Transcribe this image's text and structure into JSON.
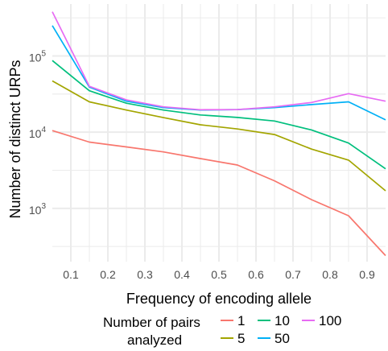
{
  "chart_data": {
    "type": "line",
    "xlabel": "Frequency of encoding allele",
    "ylabel": "Number of distinct URPs",
    "y_scale": "log10",
    "grid": true,
    "background": "#ffffff",
    "grid_color": "#ebebeb",
    "xlim": [
      0.05,
      0.95
    ],
    "ylim": [
      200,
      480000
    ],
    "x_ticks": [
      0.1,
      0.2,
      0.3,
      0.4,
      0.5,
      0.6,
      0.7,
      0.8,
      0.9
    ],
    "x_tick_labels": [
      "0.1",
      "0.2",
      "0.3",
      "0.4",
      "0.5",
      "0.6",
      "0.7",
      "0.8",
      "0.9"
    ],
    "y_ticks": [
      1000,
      10000,
      100000
    ],
    "y_tick_labels": [
      {
        "base": "10",
        "exp": "3"
      },
      {
        "base": "10",
        "exp": "4"
      },
      {
        "base": "10",
        "exp": "5"
      }
    ],
    "x": [
      0.05,
      0.15,
      0.25,
      0.35,
      0.45,
      0.55,
      0.65,
      0.75,
      0.85,
      0.95
    ],
    "series": [
      {
        "name": "1",
        "color": "#F8766D",
        "values": [
          10500,
          7400,
          6400,
          5500,
          4500,
          3700,
          2300,
          1300,
          800,
          240
        ]
      },
      {
        "name": "5",
        "color": "#A3A500",
        "values": [
          47000,
          25000,
          19500,
          15500,
          12500,
          11000,
          9300,
          6000,
          4300,
          1700
        ]
      },
      {
        "name": "10",
        "color": "#00BF7D",
        "values": [
          87000,
          35000,
          24000,
          19500,
          16800,
          15600,
          14000,
          10700,
          7200,
          3300
        ]
      },
      {
        "name": "50",
        "color": "#00B0F6",
        "values": [
          250000,
          39000,
          25500,
          21000,
          19500,
          19800,
          21000,
          23000,
          25000,
          14500
        ]
      },
      {
        "name": "100",
        "color": "#E76BF3",
        "values": [
          380000,
          40000,
          26500,
          21500,
          19700,
          19800,
          21500,
          24500,
          32000,
          25500
        ]
      }
    ],
    "legend": {
      "title_line1": "Number of pairs",
      "title_line2": "analyzed",
      "position": "bottom"
    }
  }
}
